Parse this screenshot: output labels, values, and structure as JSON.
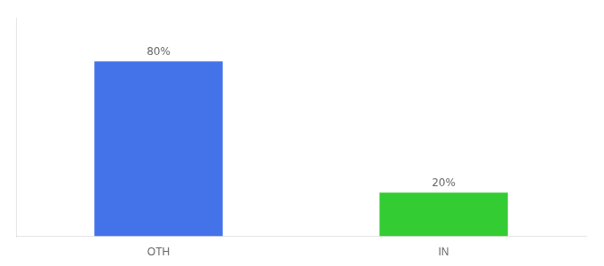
{
  "chart_data": {
    "type": "bar",
    "categories": [
      "OTH",
      "IN"
    ],
    "values": [
      80,
      20
    ],
    "value_labels": [
      "80%",
      "20%"
    ],
    "colors": [
      "#4472e8",
      "#33cc33"
    ],
    "ylim": [
      0,
      100
    ],
    "yticks": [],
    "data_labels": true,
    "tick_labels": "x",
    "grid": false
  }
}
